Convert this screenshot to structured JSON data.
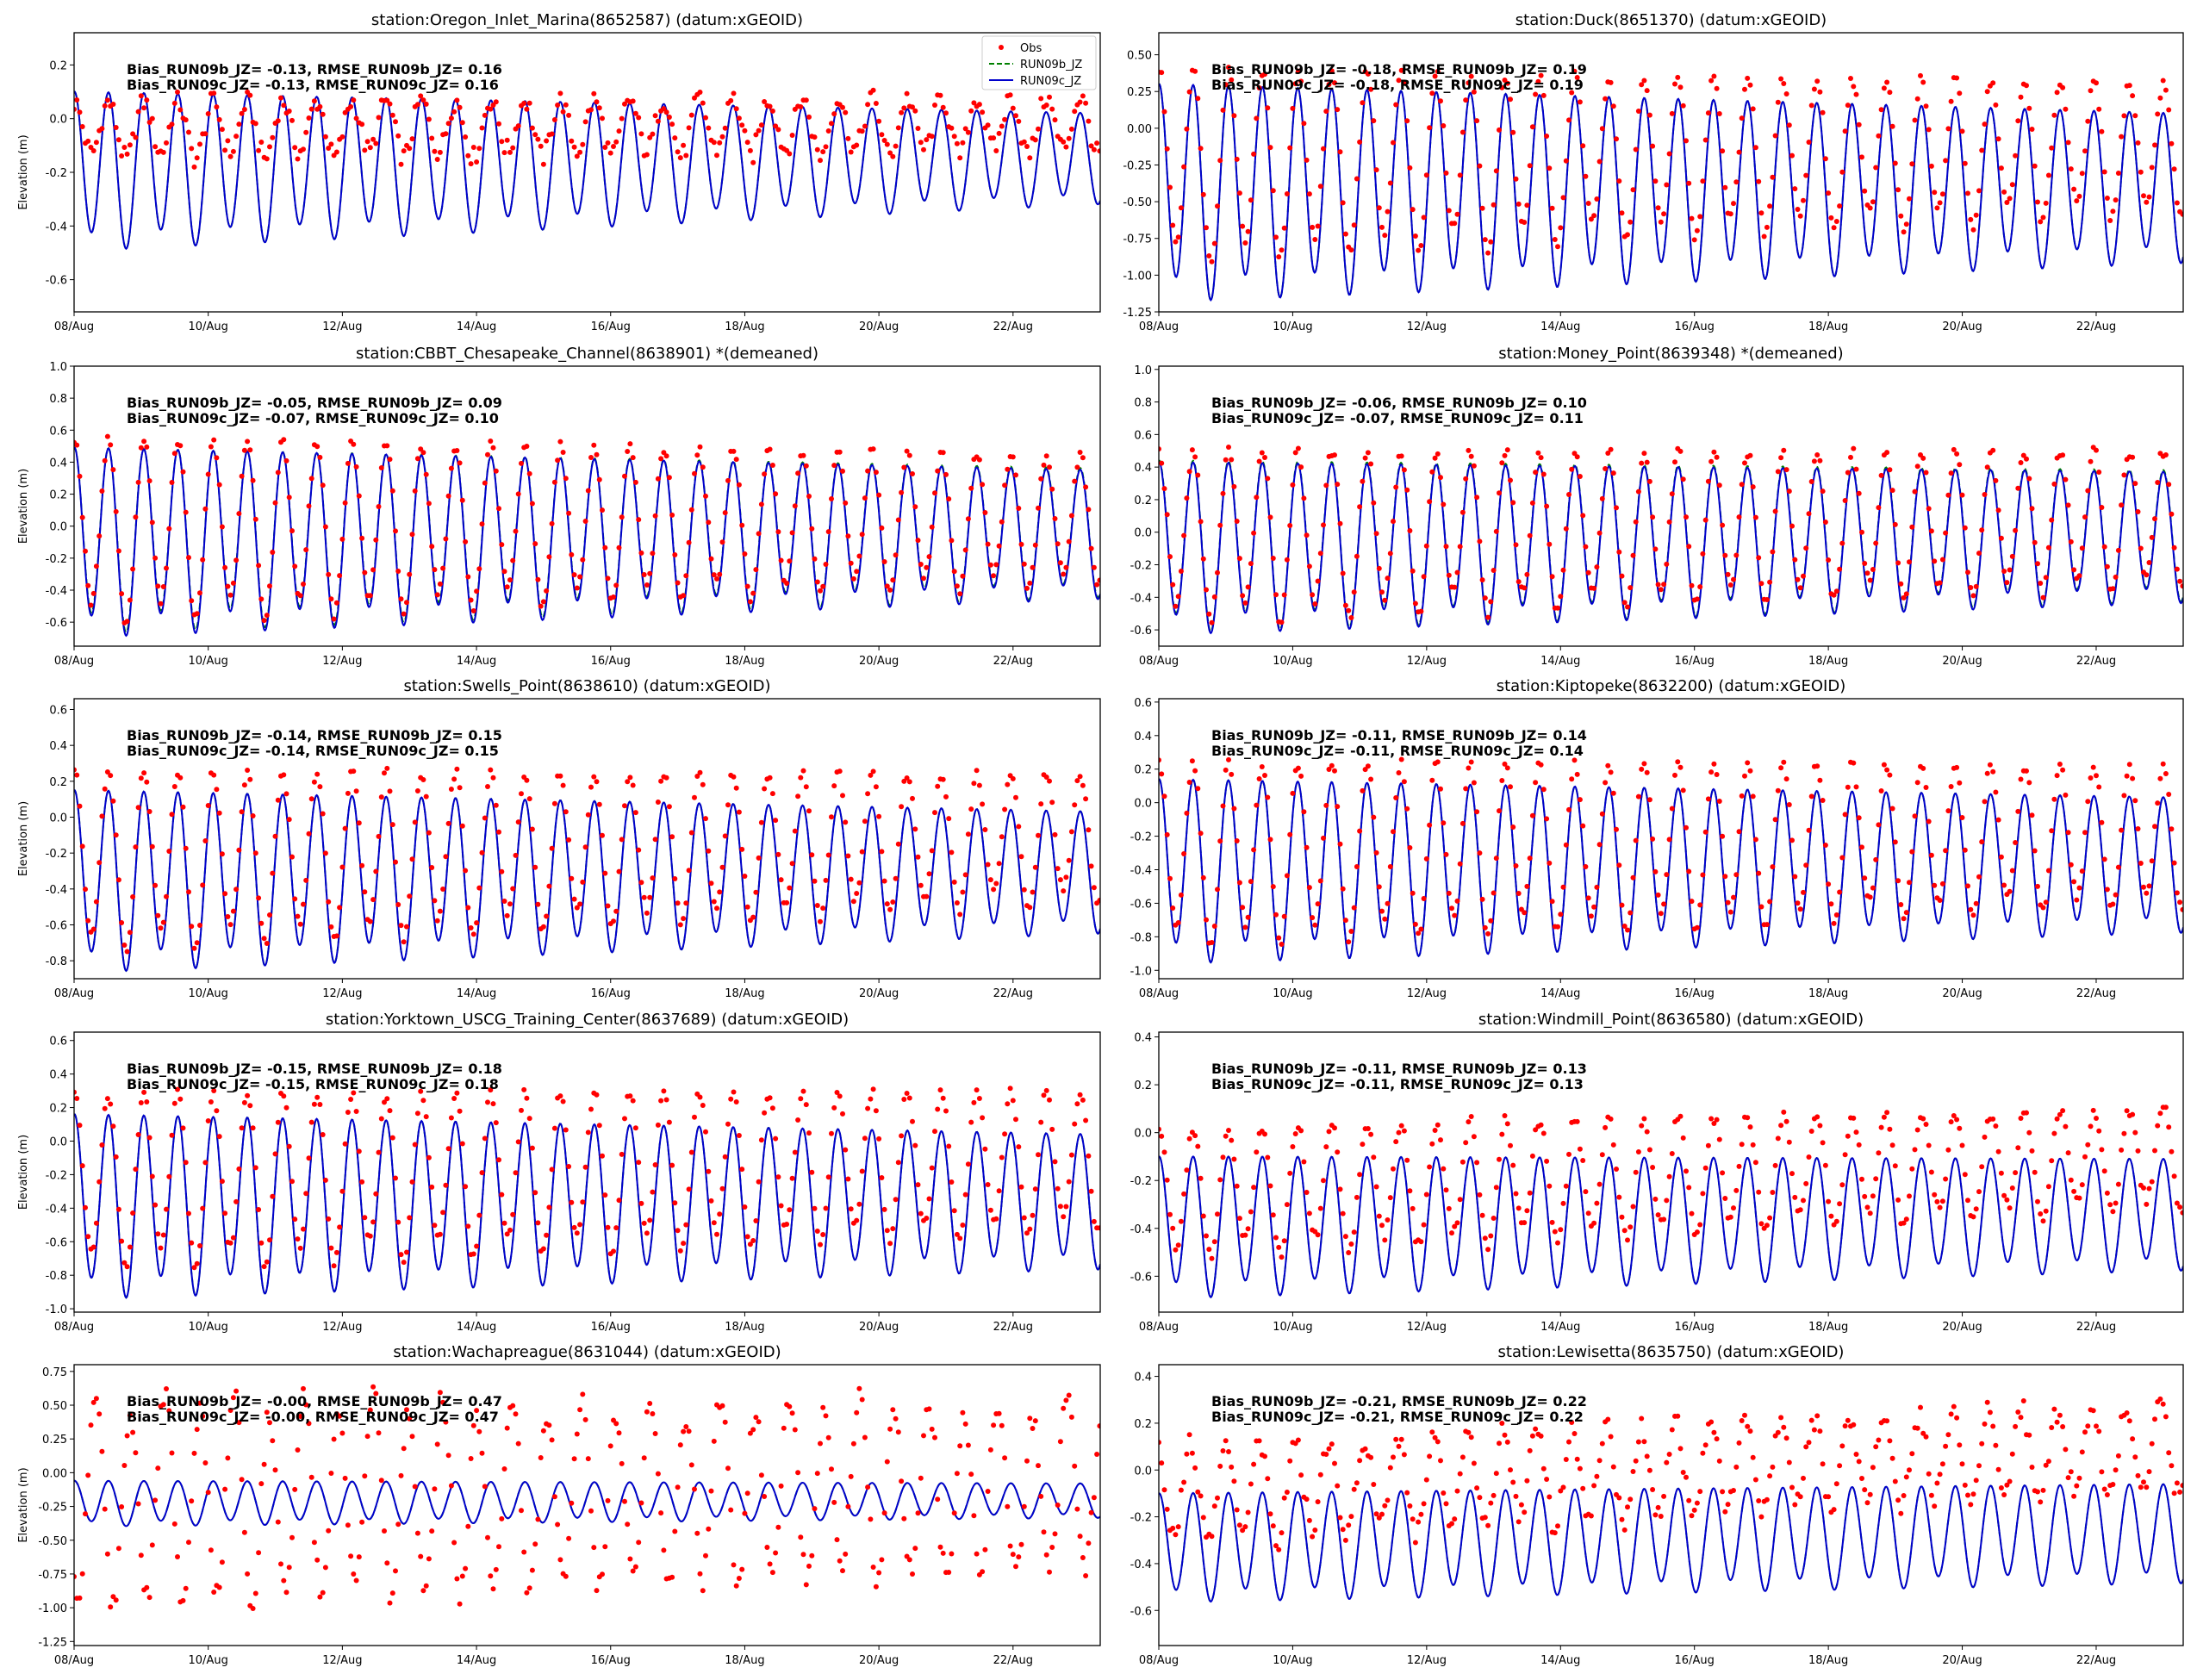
{
  "colors": {
    "obs": "#ff0000",
    "run09b": "#008000",
    "run09c": "#0000cc",
    "axes": "#000000",
    "background": "#ffffff"
  },
  "legend": {
    "position": "top-right",
    "entries": [
      "Obs",
      "RUN09b_JZ",
      "RUN09c_JZ"
    ]
  },
  "chart_data": [
    {
      "type": "line",
      "title": "station:Oregon_Inlet_Marina(8652587) (datum:xGEOID)",
      "ylabel": "Elevation (m)",
      "x_ticks": [
        "08/Aug",
        "10/Aug",
        "12/Aug",
        "14/Aug",
        "16/Aug",
        "18/Aug",
        "20/Aug",
        "22/Aug"
      ],
      "y_ticks": [
        "0.2",
        "0.0",
        "-0.2",
        "-0.4",
        "-0.6"
      ],
      "ylim": [
        -0.72,
        0.32
      ],
      "stats": [
        "Bias_RUN09b_JZ= -0.13, RMSE_RUN09b_JZ=  0.16",
        "Bias_RUN09c_JZ= -0.13, RMSE_RUN09c_JZ=  0.16"
      ],
      "series": [
        {
          "name": "Obs",
          "style": "points",
          "mean": -0.04,
          "amp": 0.1,
          "amp_end": 0.1,
          "trend": 0.02,
          "noise": 0.04
        },
        {
          "name": "RUN09b_JZ",
          "style": "dashed",
          "mean": -0.18,
          "amp": 0.28,
          "amp_end": 0.16,
          "trend": 0.04
        },
        {
          "name": "RUN09c_JZ",
          "style": "solid",
          "mean": -0.18,
          "amp": 0.28,
          "amp_end": 0.16,
          "trend": 0.04
        }
      ]
    },
    {
      "type": "line",
      "title": "station:Duck(8651370) (datum:xGEOID)",
      "ylabel": "",
      "x_ticks": [
        "08/Aug",
        "10/Aug",
        "12/Aug",
        "14/Aug",
        "16/Aug",
        "18/Aug",
        "20/Aug",
        "22/Aug"
      ],
      "y_ticks": [
        "0.50",
        "0.25",
        "0.00",
        "-0.25",
        "-0.50",
        "-0.75",
        "-1.00",
        "-1.25"
      ],
      "ylim": [
        -1.25,
        0.65
      ],
      "stats": [
        "Bias_RUN09b_JZ= -0.18, RMSE_RUN09b_JZ=  0.19",
        "Bias_RUN09c_JZ= -0.18, RMSE_RUN09c_JZ=  0.19"
      ],
      "series": [
        {
          "name": "Obs",
          "style": "points",
          "mean": -0.22,
          "amp": 0.62,
          "amp_end": 0.42,
          "trend": 0.1,
          "noise": 0.04
        },
        {
          "name": "RUN09b_JZ",
          "style": "dashed",
          "mean": -0.4,
          "amp": 0.7,
          "amp_end": 0.48,
          "trend": 0.02
        },
        {
          "name": "RUN09c_JZ",
          "style": "solid",
          "mean": -0.4,
          "amp": 0.7,
          "amp_end": 0.48,
          "trend": 0.02
        }
      ]
    },
    {
      "type": "line",
      "title": "station:CBBT_Chesapeake_Channel(8638901) *(demeaned)",
      "ylabel": "Elevation (m)",
      "x_ticks": [
        "08/Aug",
        "10/Aug",
        "12/Aug",
        "14/Aug",
        "16/Aug",
        "18/Aug",
        "20/Aug",
        "22/Aug"
      ],
      "y_ticks": [
        "1.0",
        "0.8",
        "0.6",
        "0.4",
        "0.2",
        "0.0",
        "-0.2",
        "-0.4",
        "-0.6"
      ],
      "ylim": [
        -0.75,
        1.0
      ],
      "stats": [
        "Bias_RUN09b_JZ= -0.05, RMSE_RUN09b_JZ=  0.09",
        "Bias_RUN09c_JZ= -0.07, RMSE_RUN09c_JZ=  0.10"
      ],
      "series": [
        {
          "name": "Obs",
          "style": "points",
          "mean": 0.0,
          "amp": 0.55,
          "amp_end": 0.38,
          "trend": 0.06,
          "noise": 0.03
        },
        {
          "name": "RUN09b_JZ",
          "style": "dashed",
          "mean": -0.06,
          "amp": 0.55,
          "amp_end": 0.38,
          "trend": 0.04
        },
        {
          "name": "RUN09c_JZ",
          "style": "solid",
          "mean": -0.07,
          "amp": 0.56,
          "amp_end": 0.38,
          "trend": 0.04
        }
      ]
    },
    {
      "type": "line",
      "title": "station:Money_Point(8639348) *(demeaned)",
      "ylabel": "",
      "x_ticks": [
        "08/Aug",
        "10/Aug",
        "12/Aug",
        "14/Aug",
        "16/Aug",
        "18/Aug",
        "20/Aug",
        "22/Aug"
      ],
      "y_ticks": [
        "1.0",
        "0.8",
        "0.6",
        "0.4",
        "0.2",
        "0.0",
        "-0.2",
        "-0.4",
        "-0.6"
      ],
      "ylim": [
        -0.7,
        1.02
      ],
      "stats": [
        "Bias_RUN09b_JZ= -0.06, RMSE_RUN09b_JZ=  0.10",
        "Bias_RUN09c_JZ= -0.07, RMSE_RUN09c_JZ=  0.11"
      ],
      "series": [
        {
          "name": "Obs",
          "style": "points",
          "mean": 0.0,
          "amp": 0.5,
          "amp_end": 0.4,
          "trend": 0.1,
          "noise": 0.04
        },
        {
          "name": "RUN09b_JZ",
          "style": "dashed",
          "mean": -0.06,
          "amp": 0.5,
          "amp_end": 0.38,
          "trend": 0.06
        },
        {
          "name": "RUN09c_JZ",
          "style": "solid",
          "mean": -0.07,
          "amp": 0.5,
          "amp_end": 0.38,
          "trend": 0.06
        }
      ]
    },
    {
      "type": "line",
      "title": "station:Swells_Point(8638610) (datum:xGEOID)",
      "ylabel": "Elevation (m)",
      "x_ticks": [
        "08/Aug",
        "10/Aug",
        "12/Aug",
        "14/Aug",
        "16/Aug",
        "18/Aug",
        "20/Aug",
        "22/Aug"
      ],
      "y_ticks": [
        "0.6",
        "0.4",
        "0.2",
        "0.0",
        "-0.2",
        "-0.4",
        "-0.6",
        "-0.8"
      ],
      "ylim": [
        -0.9,
        0.66
      ],
      "stats": [
        "Bias_RUN09b_JZ= -0.14, RMSE_RUN09b_JZ=  0.15",
        "Bias_RUN09c_JZ= -0.14, RMSE_RUN09c_JZ=  0.15"
      ],
      "series": [
        {
          "name": "Obs",
          "style": "points",
          "mean": -0.22,
          "amp": 0.48,
          "amp_end": 0.34,
          "trend": 0.12,
          "noise": 0.03
        },
        {
          "name": "RUN09b_JZ",
          "style": "dashed",
          "mean": -0.33,
          "amp": 0.48,
          "amp_end": 0.32,
          "trend": 0.04
        },
        {
          "name": "RUN09c_JZ",
          "style": "solid",
          "mean": -0.33,
          "amp": 0.48,
          "amp_end": 0.32,
          "trend": 0.04
        }
      ]
    },
    {
      "type": "line",
      "title": "station:Kiptopeke(8632200) (datum:xGEOID)",
      "ylabel": "",
      "x_ticks": [
        "08/Aug",
        "10/Aug",
        "12/Aug",
        "14/Aug",
        "16/Aug",
        "18/Aug",
        "20/Aug",
        "22/Aug"
      ],
      "y_ticks": [
        "0.6",
        "0.4",
        "0.2",
        "0.0",
        "-0.2",
        "-0.4",
        "-0.6",
        "-0.8",
        "-1.0"
      ],
      "ylim": [
        -1.05,
        0.62
      ],
      "stats": [
        "Bias_RUN09b_JZ= -0.11, RMSE_RUN09b_JZ=  0.14",
        "Bias_RUN09c_JZ= -0.11, RMSE_RUN09c_JZ=  0.14"
      ],
      "series": [
        {
          "name": "Obs",
          "style": "points",
          "mean": -0.28,
          "amp": 0.52,
          "amp_end": 0.4,
          "trend": 0.1,
          "noise": 0.03
        },
        {
          "name": "RUN09b_JZ",
          "style": "dashed",
          "mean": -0.38,
          "amp": 0.52,
          "amp_end": 0.38,
          "trend": 0.03
        },
        {
          "name": "RUN09c_JZ",
          "style": "solid",
          "mean": -0.38,
          "amp": 0.52,
          "amp_end": 0.38,
          "trend": 0.03
        }
      ]
    },
    {
      "type": "line",
      "title": "station:Yorktown_USCG_Training_Center(8637689) (datum:xGEOID)",
      "ylabel": "Elevation (m)",
      "x_ticks": [
        "08/Aug",
        "10/Aug",
        "12/Aug",
        "14/Aug",
        "16/Aug",
        "18/Aug",
        "20/Aug",
        "22/Aug"
      ],
      "y_ticks": [
        "0.6",
        "0.4",
        "0.2",
        "0.0",
        "-0.2",
        "-0.4",
        "-0.6",
        "-0.8",
        "-1.0"
      ],
      "ylim": [
        -1.02,
        0.65
      ],
      "stats": [
        "Bias_RUN09b_JZ= -0.15, RMSE_RUN09b_JZ=  0.18",
        "Bias_RUN09c_JZ= -0.15, RMSE_RUN09c_JZ=  0.18"
      ],
      "series": [
        {
          "name": "Obs",
          "style": "points",
          "mean": -0.22,
          "amp": 0.5,
          "amp_end": 0.4,
          "trend": 0.12,
          "noise": 0.03
        },
        {
          "name": "RUN09b_JZ",
          "style": "dashed",
          "mean": -0.36,
          "amp": 0.52,
          "amp_end": 0.38,
          "trend": 0.02
        },
        {
          "name": "RUN09c_JZ",
          "style": "solid",
          "mean": -0.36,
          "amp": 0.52,
          "amp_end": 0.38,
          "trend": 0.02
        }
      ]
    },
    {
      "type": "line",
      "title": "station:Windmill_Point(8636580) (datum:xGEOID)",
      "ylabel": "",
      "x_ticks": [
        "08/Aug",
        "10/Aug",
        "12/Aug",
        "14/Aug",
        "16/Aug",
        "18/Aug",
        "20/Aug",
        "22/Aug"
      ],
      "y_ticks": [
        "0.4",
        "0.2",
        "0.0",
        "-0.2",
        "-0.4",
        "-0.6"
      ],
      "ylim": [
        -0.75,
        0.42
      ],
      "stats": [
        "Bias_RUN09b_JZ= -0.11, RMSE_RUN09b_JZ=  0.13",
        "Bias_RUN09c_JZ= -0.11, RMSE_RUN09c_JZ=  0.13"
      ],
      "series": [
        {
          "name": "Obs",
          "style": "points",
          "mean": -0.24,
          "amp": 0.26,
          "amp_end": 0.2,
          "trend": 0.14,
          "noise": 0.03
        },
        {
          "name": "RUN09b_JZ",
          "style": "dashed",
          "mean": -0.38,
          "amp": 0.28,
          "amp_end": 0.22,
          "trend": 0.05
        },
        {
          "name": "RUN09c_JZ",
          "style": "solid",
          "mean": -0.38,
          "amp": 0.28,
          "amp_end": 0.22,
          "trend": 0.05
        }
      ]
    },
    {
      "type": "line",
      "title": "station:Wachapreague(8631044) (datum:xGEOID)",
      "ylabel": "Elevation (m)",
      "x_ticks": [
        "08/Aug",
        "10/Aug",
        "12/Aug",
        "14/Aug",
        "16/Aug",
        "18/Aug",
        "20/Aug",
        "22/Aug"
      ],
      "y_ticks": [
        "0.75",
        "0.50",
        "0.25",
        "0.00",
        "-0.25",
        "-0.50",
        "-0.75",
        "-1.00",
        "-1.25"
      ],
      "ylim": [
        -1.28,
        0.8
      ],
      "stats": [
        "Bias_RUN09b_JZ= -0.00, RMSE_RUN09b_JZ=  0.47",
        "Bias_RUN09c_JZ= -0.00, RMSE_RUN09c_JZ=  0.47"
      ],
      "series": [
        {
          "name": "Obs",
          "style": "points",
          "mean": -0.22,
          "amp": 0.75,
          "amp_end": 0.58,
          "trend": 0.1,
          "noise": 0.1,
          "phase": 2.4
        },
        {
          "name": "RUN09b_JZ",
          "style": "dashed",
          "mean": -0.22,
          "amp": 0.16,
          "amp_end": 0.12,
          "trend": 0.02
        },
        {
          "name": "RUN09c_JZ",
          "style": "solid",
          "mean": -0.22,
          "amp": 0.16,
          "amp_end": 0.12,
          "trend": 0.02
        }
      ]
    },
    {
      "type": "line",
      "title": "station:Lewisetta(8635750) (datum:xGEOID)",
      "ylabel": "",
      "x_ticks": [
        "08/Aug",
        "10/Aug",
        "12/Aug",
        "14/Aug",
        "16/Aug",
        "18/Aug",
        "20/Aug",
        "22/Aug"
      ],
      "y_ticks": [
        "0.4",
        "0.2",
        "0.0",
        "-0.2",
        "-0.4",
        "-0.6"
      ],
      "ylim": [
        -0.75,
        0.45
      ],
      "stats": [
        "Bias_RUN09b_JZ= -0.21, RMSE_RUN09b_JZ=  0.22",
        "Bias_RUN09c_JZ= -0.21, RMSE_RUN09c_JZ=  0.22"
      ],
      "series": [
        {
          "name": "Obs",
          "style": "points",
          "mean": -0.1,
          "amp": 0.2,
          "amp_end": 0.18,
          "trend": 0.2,
          "noise": 0.05,
          "phase": 0.5
        },
        {
          "name": "RUN09b_JZ",
          "style": "dashed",
          "mean": -0.32,
          "amp": 0.22,
          "amp_end": 0.2,
          "trend": 0.06
        },
        {
          "name": "RUN09c_JZ",
          "style": "solid",
          "mean": -0.32,
          "amp": 0.22,
          "amp_end": 0.2,
          "trend": 0.06
        }
      ]
    }
  ]
}
